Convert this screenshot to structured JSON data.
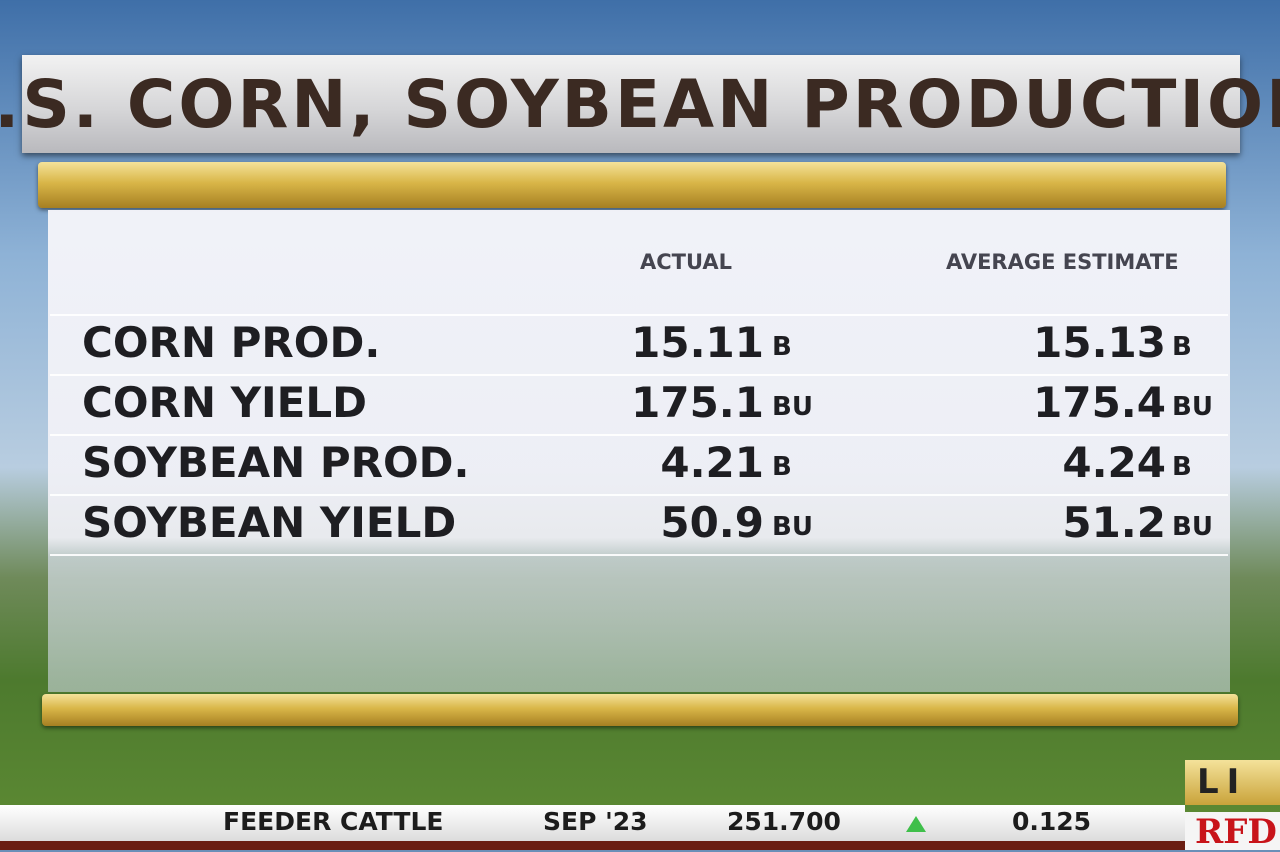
{
  "header": {
    "title": "U.S. CORN, SOYBEAN PRODUCTION"
  },
  "table": {
    "columns": [
      "ACTUAL",
      "AVERAGE ESTIMATE"
    ],
    "rows": [
      {
        "label": "CORN PROD.",
        "actual": 15.11,
        "actual_unit": "B",
        "estimate": 15.13,
        "estimate_unit": "B"
      },
      {
        "label": "CORN YIELD",
        "actual": 175.1,
        "actual_unit": "BU",
        "estimate": 175.4,
        "estimate_unit": "BU"
      },
      {
        "label": "SOYBEAN PROD.",
        "actual": 4.21,
        "actual_unit": "B",
        "estimate": 4.24,
        "estimate_unit": "B"
      },
      {
        "label": "SOYBEAN YIELD",
        "actual": 50.9,
        "actual_unit": "BU",
        "estimate": 51.2,
        "estimate_unit": "BU"
      }
    ]
  },
  "ticker": {
    "commodity": "FEEDER CATTLE",
    "contract": "SEP '23",
    "price": "251.700",
    "change": 0.125
  },
  "badge": "LI",
  "logo": "RFD"
}
